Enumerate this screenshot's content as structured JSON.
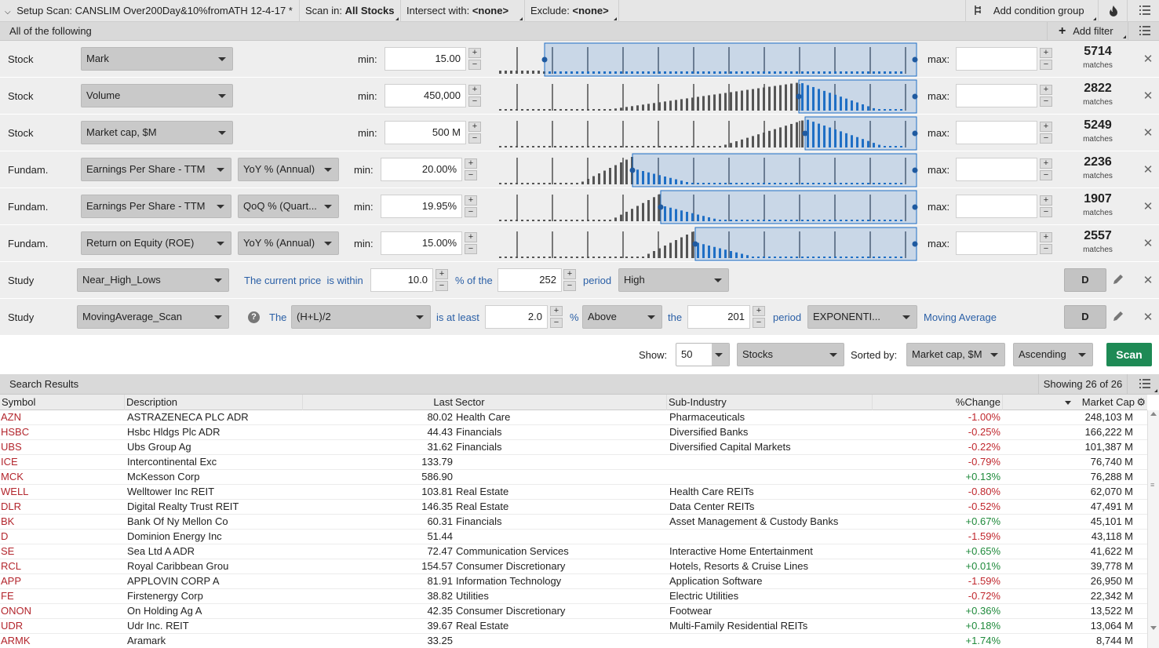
{
  "topbar": {
    "title": "Setup Scan: CANSLIM Over200Day&10%fromATH 12-4-17 *",
    "scan_in_label": "Scan in:",
    "scan_in_value": "All Stocks",
    "intersect_label": "Intersect with:",
    "intersect_value": "<none>",
    "exclude_label": "Exclude:",
    "exclude_value": "<none>",
    "add_condition_group": "Add condition group"
  },
  "subbar": {
    "label": "All of the following",
    "add_filter": "Add filter"
  },
  "filters": [
    {
      "category": "Stock",
      "field": "Mark",
      "modifier": "",
      "min_label": "min:",
      "min": "15.00",
      "max_label": "max:",
      "max": "",
      "matches": "5714",
      "matches_label": "matches"
    },
    {
      "category": "Stock",
      "field": "Volume",
      "modifier": "",
      "min_label": "min:",
      "min": "450,000",
      "max_label": "max:",
      "max": "",
      "matches": "2822",
      "matches_label": "matches"
    },
    {
      "category": "Stock",
      "field": "Market cap, $M",
      "modifier": "",
      "min_label": "min:",
      "min": "500 M",
      "max_label": "max:",
      "max": "",
      "matches": "5249",
      "matches_label": "matches"
    },
    {
      "category": "Fundam.",
      "field": "Earnings Per Share - TTM",
      "modifier": "YoY % (Annual)",
      "min_label": "min:",
      "min": "20.00%",
      "max_label": "max:",
      "max": "",
      "matches": "2236",
      "matches_label": "matches"
    },
    {
      "category": "Fundam.",
      "field": "Earnings Per Share - TTM",
      "modifier": "QoQ % (Quart...",
      "min_label": "min:",
      "min": "19.95%",
      "max_label": "max:",
      "max": "",
      "matches": "1907",
      "matches_label": "matches"
    },
    {
      "category": "Fundam.",
      "field": "Return on Equity (ROE)",
      "modifier": "YoY % (Annual)",
      "min_label": "min:",
      "min": "15.00%",
      "max_label": "max:",
      "max": "",
      "matches": "2557",
      "matches_label": "matches"
    }
  ],
  "study1": {
    "category": "Study",
    "field": "Near_High_Lows",
    "text1": "The current price  is within",
    "value1": "10.0",
    "text2": "% of the",
    "value2": "252",
    "text3": "period",
    "select": "High",
    "agg": "D"
  },
  "study2": {
    "category": "Study",
    "field": "MovingAverage_Scan",
    "text1": "The",
    "price": "(H+L)/2",
    "text2": "is at least",
    "value1": "2.0",
    "text3": "%",
    "direction": "Above",
    "text4": "the",
    "value2": "201",
    "text5": "period",
    "ma_type": "EXPONENTI...",
    "text6": "Moving Average",
    "agg": "D"
  },
  "show": {
    "show_label": "Show:",
    "show_value": "50",
    "type_value": "Stocks",
    "sorted_label": "Sorted by:",
    "sorted_value": "Market cap, $M",
    "order_value": "Ascending",
    "scan_button": "Scan"
  },
  "results": {
    "title": "Search Results",
    "showing": "Showing 26 of 26",
    "columns": {
      "symbol": "Symbol",
      "description": "Description",
      "last": "Last",
      "sector": "Sector",
      "subindustry": "Sub-Industry",
      "change": "%Change",
      "marketcap": "Market Cap"
    },
    "rows": [
      {
        "symbol": "AZN",
        "description": "ASTRAZENECA PLC ADR",
        "last": "80.02",
        "sector": "Health Care",
        "subindustry": "Pharmaceuticals",
        "change": "-1.00%",
        "marketcap": "248,103 M"
      },
      {
        "symbol": "HSBC",
        "description": "Hsbc Hldgs Plc ADR",
        "last": "44.43",
        "sector": "Financials",
        "subindustry": "Diversified Banks",
        "change": "-0.25%",
        "marketcap": "166,222 M"
      },
      {
        "symbol": "UBS",
        "description": "Ubs Group Ag",
        "last": "31.62",
        "sector": "Financials",
        "subindustry": "Diversified Capital Markets",
        "change": "-0.22%",
        "marketcap": "101,387 M"
      },
      {
        "symbol": "ICE",
        "description": "Intercontinental Exc",
        "last": "133.79",
        "sector": "",
        "subindustry": "",
        "change": "-0.79%",
        "marketcap": "76,740 M"
      },
      {
        "symbol": "MCK",
        "description": "McKesson Corp",
        "last": "586.90",
        "sector": "",
        "subindustry": "",
        "change": "+0.13%",
        "marketcap": "76,288 M"
      },
      {
        "symbol": "WELL",
        "description": "Welltower Inc REIT",
        "last": "103.81",
        "sector": "Real Estate",
        "subindustry": "Health Care REITs",
        "change": "-0.80%",
        "marketcap": "62,070 M"
      },
      {
        "symbol": "DLR",
        "description": "Digital Realty Trust REIT",
        "last": "146.35",
        "sector": "Real Estate",
        "subindustry": "Data Center REITs",
        "change": "-0.52%",
        "marketcap": "47,491 M"
      },
      {
        "symbol": "BK",
        "description": "Bank Of Ny Mellon Co",
        "last": "60.31",
        "sector": "Financials",
        "subindustry": "Asset Management & Custody Banks",
        "change": "+0.67%",
        "marketcap": "45,101 M"
      },
      {
        "symbol": "D",
        "description": "Dominion Energy Inc",
        "last": "51.44",
        "sector": "",
        "subindustry": "",
        "change": "-1.59%",
        "marketcap": "43,118 M"
      },
      {
        "symbol": "SE",
        "description": "Sea Ltd A ADR",
        "last": "72.47",
        "sector": "Communication Services",
        "subindustry": "Interactive Home Entertainment",
        "change": "+0.65%",
        "marketcap": "41,622 M"
      },
      {
        "symbol": "RCL",
        "description": "Royal Caribbean Grou",
        "last": "154.57",
        "sector": "Consumer Discretionary",
        "subindustry": "Hotels, Resorts & Cruise Lines",
        "change": "+0.01%",
        "marketcap": "39,778 M"
      },
      {
        "symbol": "APP",
        "description": "APPLOVIN CORP A",
        "last": "81.91",
        "sector": "Information Technology",
        "subindustry": "Application Software",
        "change": "-1.59%",
        "marketcap": "26,950 M"
      },
      {
        "symbol": "FE",
        "description": "Firstenergy Corp",
        "last": "38.82",
        "sector": "Utilities",
        "subindustry": "Electric Utilities",
        "change": "-0.72%",
        "marketcap": "22,342 M"
      },
      {
        "symbol": "ONON",
        "description": "On Holding Ag A",
        "last": "42.35",
        "sector": "Consumer Discretionary",
        "subindustry": "Footwear",
        "change": "+0.36%",
        "marketcap": "13,522 M"
      },
      {
        "symbol": "UDR",
        "description": "Udr Inc. REIT",
        "last": "39.67",
        "sector": "Real Estate",
        "subindustry": "Multi-Family Residential REITs",
        "change": "+0.18%",
        "marketcap": "13,064 M"
      },
      {
        "symbol": "ARMK",
        "description": "Aramark",
        "last": "33.25",
        "sector": "",
        "subindustry": "",
        "change": "+1.74%",
        "marketcap": "8,744 M"
      }
    ]
  },
  "colors": {
    "accent_blue": "#1f6fc5",
    "scan_green": "#1e8a55",
    "negative": "#c0272d",
    "positive": "#1f8a3b",
    "symbol": "#b3262d"
  },
  "icons": [
    "chevron-down-icon",
    "filter-icon",
    "fire-icon",
    "list-menu-icon",
    "plus-icon",
    "close-icon",
    "pencil-icon",
    "help-icon",
    "gear-icon",
    "sort-down-icon"
  ]
}
